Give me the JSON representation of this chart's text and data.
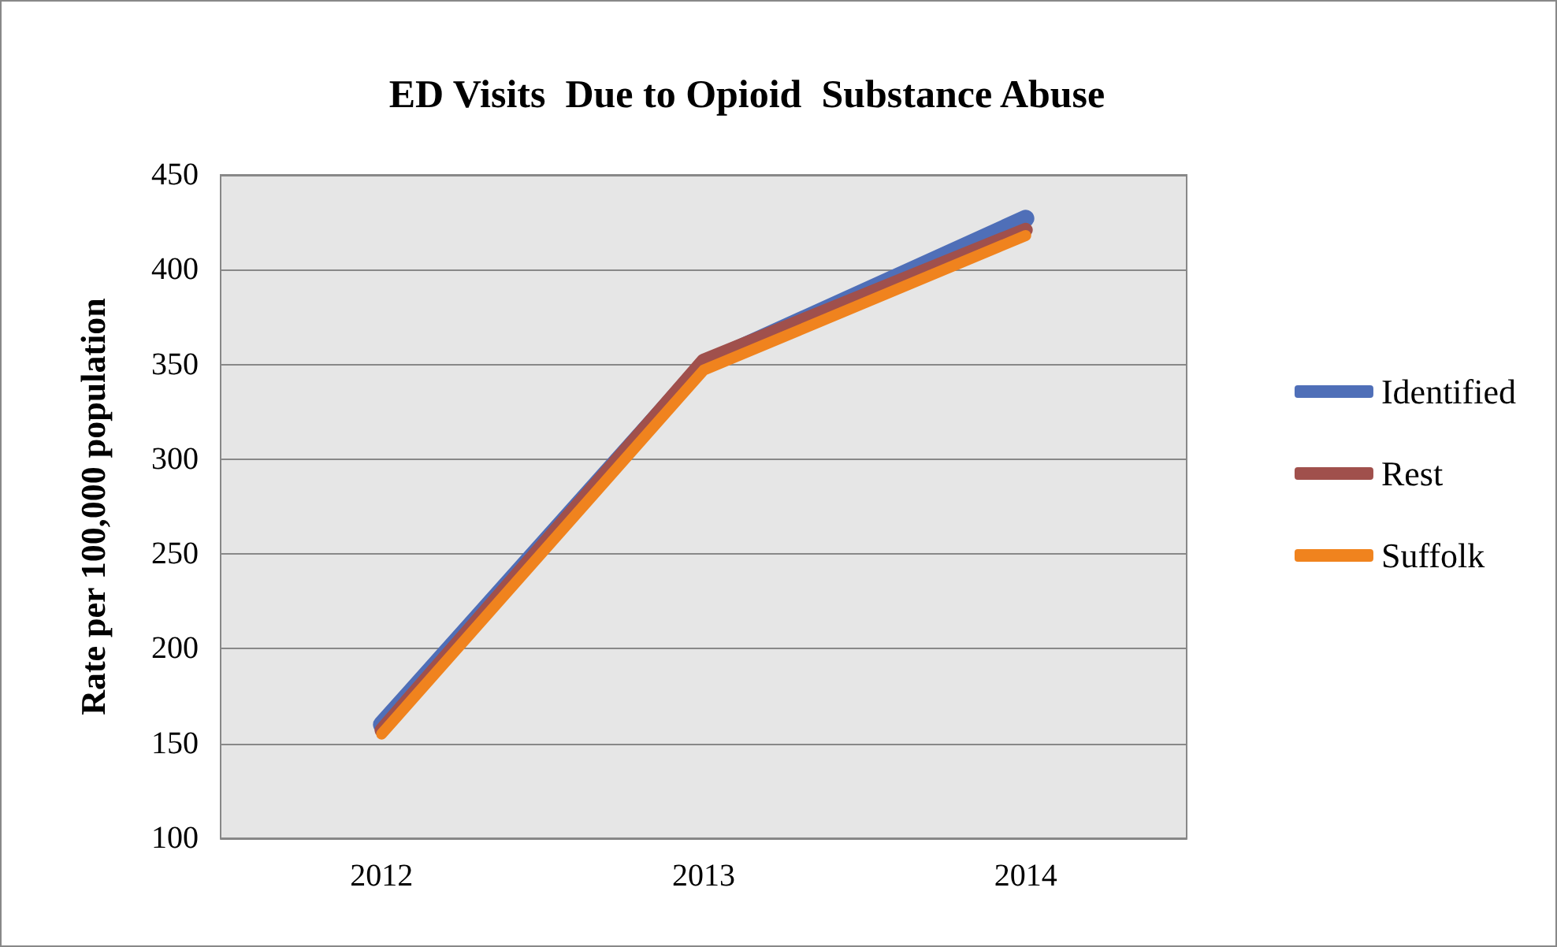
{
  "chart_data": {
    "type": "line",
    "title": "ED Visits  Due to Opioid  Substance Abuse",
    "ylabel": "Rate per 100,000 population",
    "categories": [
      "2012",
      "2013",
      "2014"
    ],
    "series": [
      {
        "name": "Identified",
        "color": "#4f6fb8",
        "values": [
          160,
          350,
          427
        ]
      },
      {
        "name": "Rest",
        "color": "#a0504c",
        "values": [
          157,
          352,
          421
        ]
      },
      {
        "name": "Suffolk",
        "color": "#f0831e",
        "values": [
          155,
          347,
          418
        ]
      }
    ],
    "ylim": [
      100,
      450
    ],
    "yticks": [
      100,
      150,
      200,
      250,
      300,
      350,
      400,
      450
    ],
    "grid": "y",
    "legend": "right",
    "marker": "none",
    "line_style": "solid"
  }
}
